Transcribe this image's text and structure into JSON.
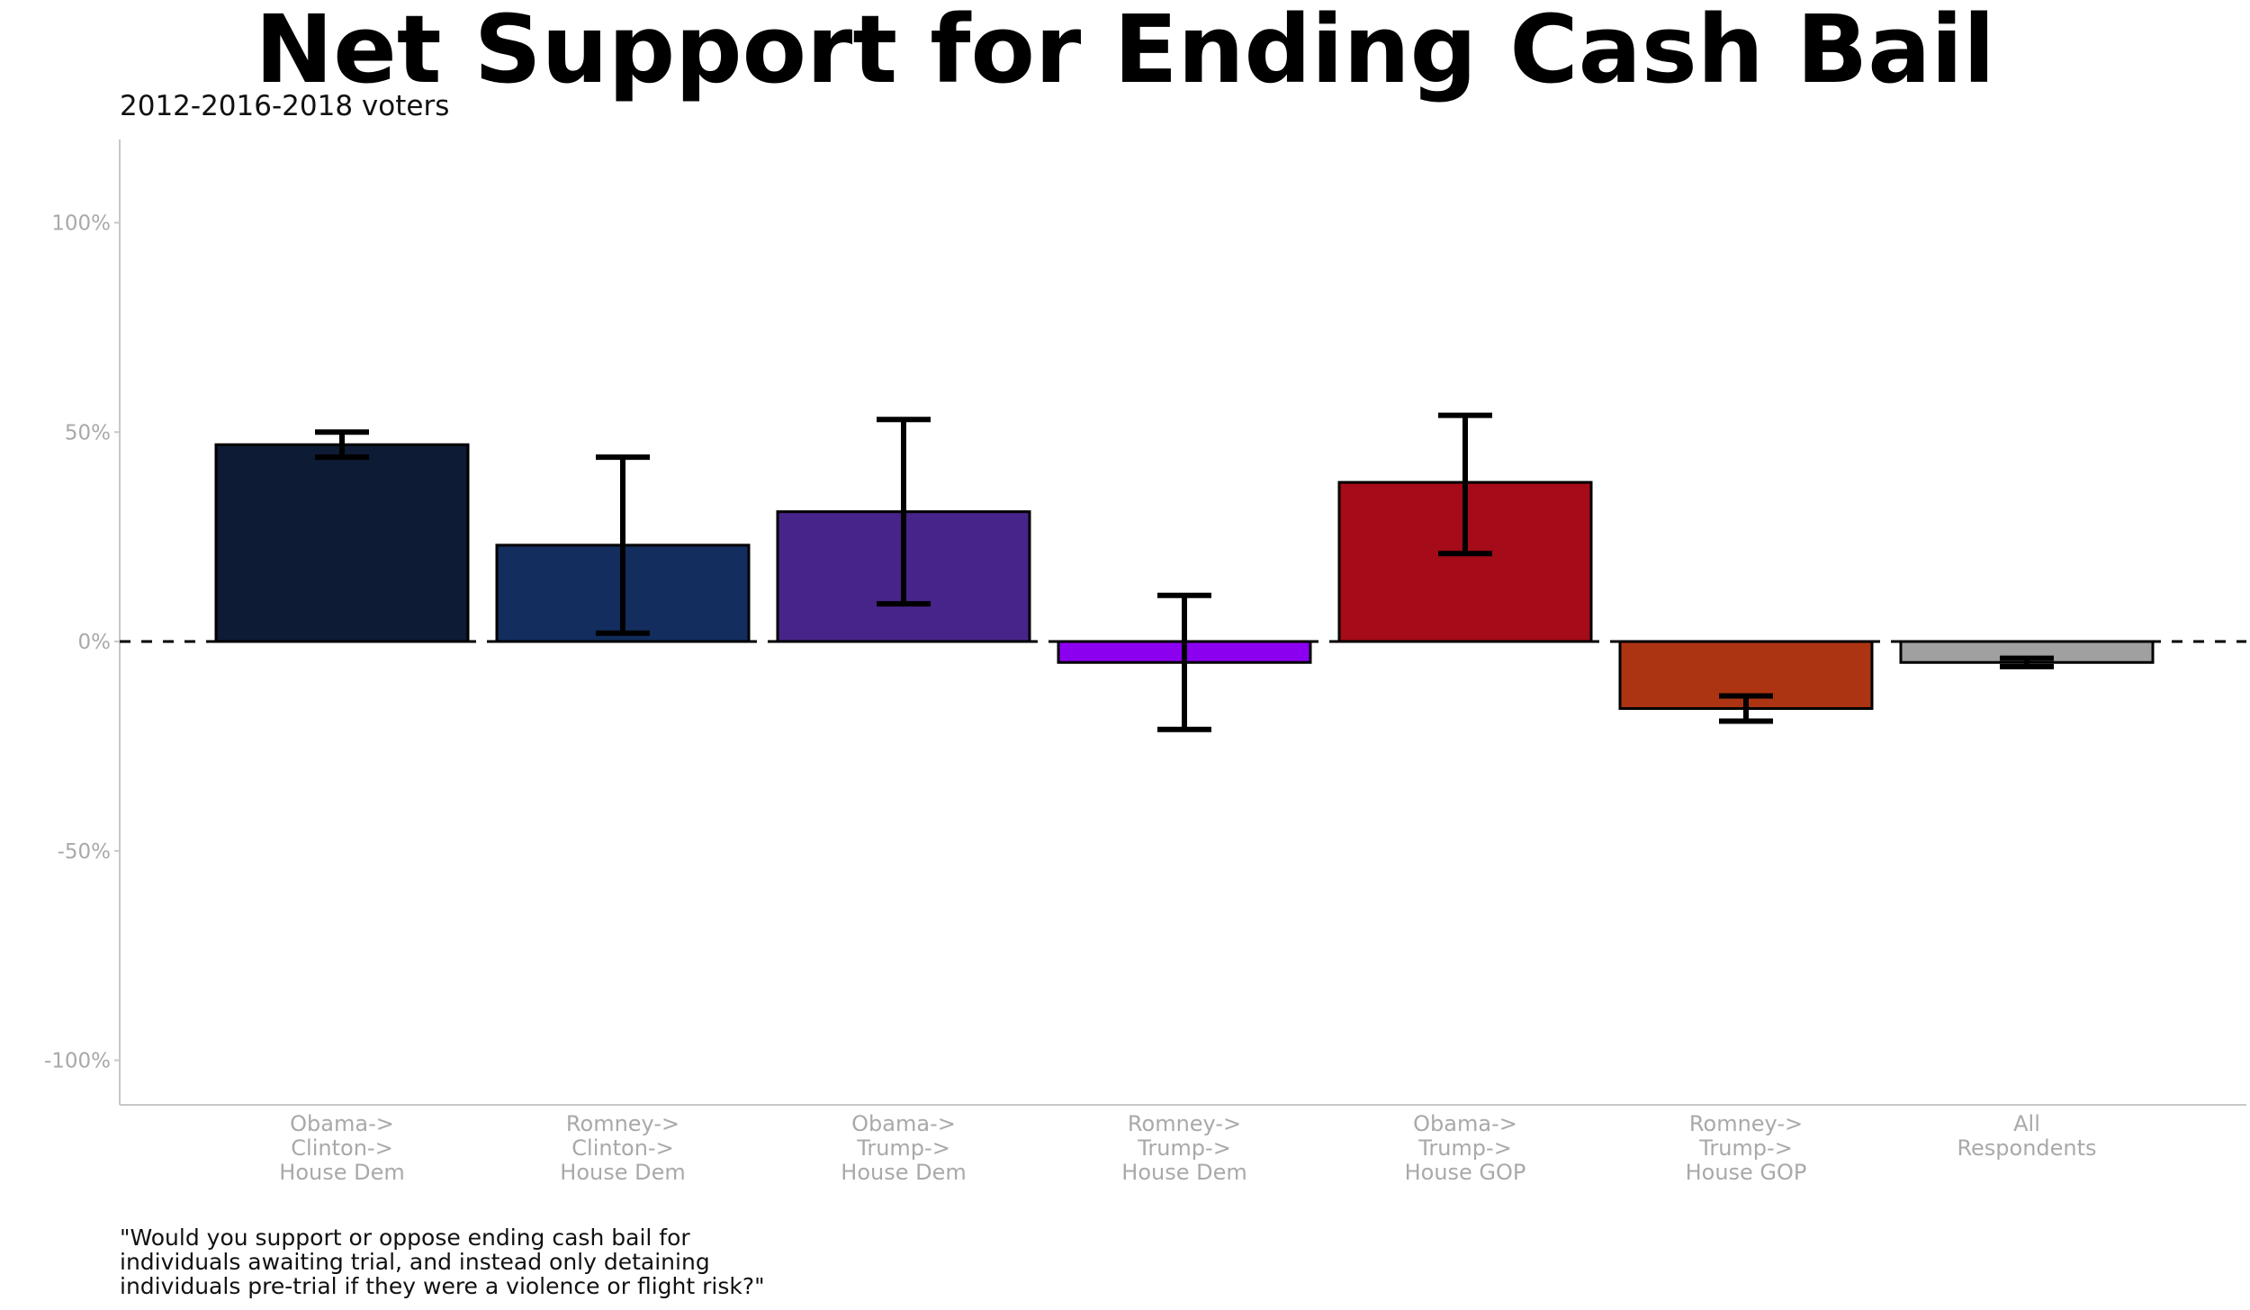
{
  "chart_data": {
    "type": "bar",
    "title": "Net Support for Ending Cash Bail",
    "subtitle": "2012-2016-2018 voters",
    "caption_lines": [
      "\"Would you support or oppose ending cash bail for",
      "individuals awaiting trial, and instead only detaining",
      "individuals pre-trial if they were a violence or flight risk?\""
    ],
    "categories": [
      [
        "Obama->",
        "Clinton->",
        "House Dem"
      ],
      [
        "Romney->",
        "Clinton->",
        "House Dem"
      ],
      [
        "Obama->",
        "Trump->",
        "House Dem"
      ],
      [
        "Romney->",
        "Trump->",
        "House Dem"
      ],
      [
        "Obama->",
        "Trump->",
        "House GOP"
      ],
      [
        "Romney->",
        "Trump->",
        "House GOP"
      ],
      [
        "All",
        "Respondents"
      ]
    ],
    "values": [
      47,
      23,
      31,
      -5,
      38,
      -16,
      -5
    ],
    "error_low": [
      44,
      2,
      9,
      -21,
      21,
      -19,
      -6
    ],
    "error_high": [
      50,
      44,
      53,
      11,
      54,
      -13,
      -4
    ],
    "colors": [
      "#0d1b35",
      "#122d5e",
      "#472489",
      "#8c00f0",
      "#a50b18",
      "#ad3412",
      "#a0a0a0"
    ],
    "ylim": [
      -110,
      120
    ],
    "yticks": [
      100,
      50,
      0,
      -50,
      -100
    ],
    "ytick_labels": [
      "100%",
      "50%",
      "0%",
      "-50%",
      "-100%"
    ],
    "reference_line": 0,
    "grid": false,
    "legend": "none"
  }
}
